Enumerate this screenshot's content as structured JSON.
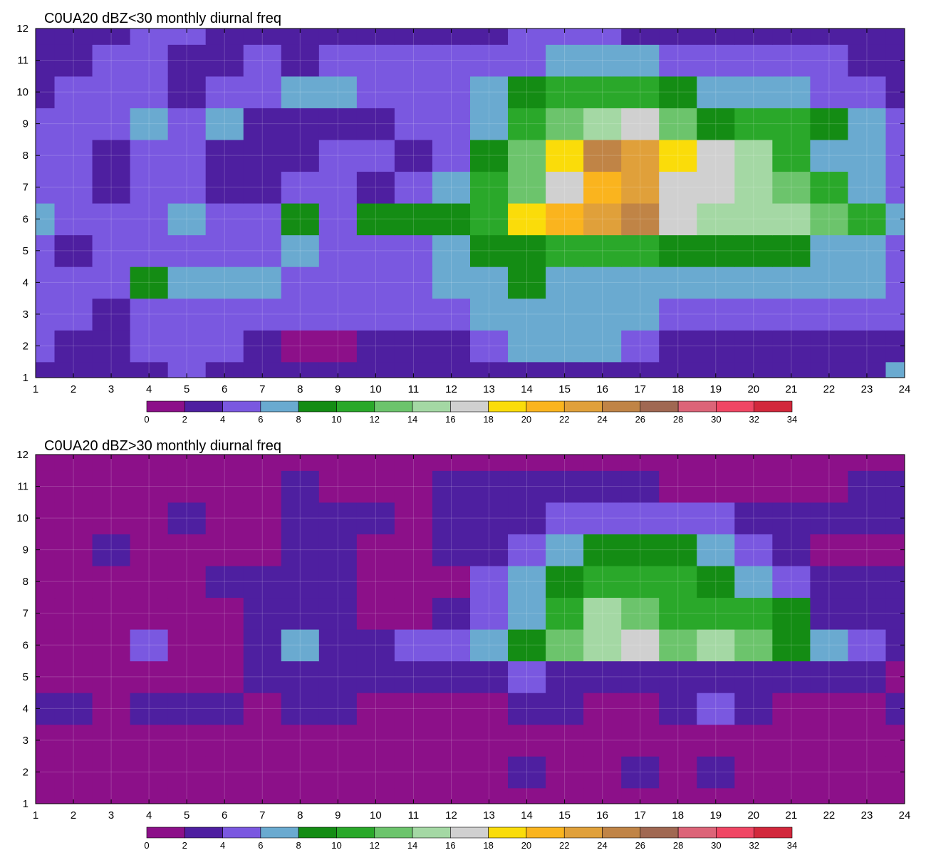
{
  "chart_data": [
    {
      "type": "heatmap",
      "title": "C0UA20 dBZ<30 monthly diurnal freq",
      "xlabel": "",
      "ylabel": "",
      "xlim": [
        1,
        24
      ],
      "ylim": [
        1,
        12
      ],
      "x_ticks": [
        1,
        2,
        3,
        4,
        5,
        6,
        7,
        8,
        9,
        10,
        11,
        12,
        13,
        14,
        15,
        16,
        17,
        18,
        19,
        20,
        21,
        22,
        23,
        24
      ],
      "y_ticks": [
        1,
        2,
        3,
        4,
        5,
        6,
        7,
        8,
        9,
        10,
        11,
        12
      ],
      "grid": true,
      "colorbar": {
        "levels": [
          0,
          2,
          4,
          6,
          8,
          10,
          12,
          14,
          16,
          18,
          20,
          22,
          24,
          26,
          28,
          30,
          32,
          34
        ],
        "colors": [
          "#8c1089",
          "#4e1fa0",
          "#7a58e0",
          "#6aaad0",
          "#148c14",
          "#2aa82a",
          "#6cc46c",
          "#a4d8a4",
          "#d0d0d0",
          "#fadc0a",
          "#fab41e",
          "#e0a03a",
          "#c08446",
          "#a06852",
          "#dc6478",
          "#f04664",
          "#d2283c"
        ]
      },
      "x": [
        1,
        2,
        3,
        4,
        5,
        6,
        7,
        8,
        9,
        10,
        11,
        12,
        13,
        14,
        15,
        16,
        17,
        18,
        19,
        20,
        21,
        22,
        23,
        24
      ],
      "y": [
        1,
        2,
        3,
        4,
        5,
        6,
        7,
        8,
        9,
        10,
        11,
        12
      ],
      "z": [
        [
          3,
          3,
          3,
          3,
          5,
          3,
          3,
          3,
          3,
          3,
          3,
          3,
          3,
          3,
          3,
          3,
          3,
          3,
          3,
          3,
          3,
          3,
          3,
          7
        ],
        [
          4,
          3,
          3,
          4,
          5,
          4,
          3,
          1,
          1,
          2,
          3,
          3,
          5,
          7,
          7,
          6,
          5,
          3,
          3,
          3,
          3,
          3,
          3,
          3
        ],
        [
          4,
          4,
          3,
          4,
          5,
          5,
          4,
          4,
          4,
          4,
          4,
          5,
          7,
          7,
          7,
          7,
          6,
          5,
          5,
          5,
          5,
          5,
          5,
          5
        ],
        [
          4,
          4,
          4,
          8,
          6,
          6,
          6,
          4,
          4,
          4,
          4,
          6,
          7,
          8,
          6,
          6,
          6,
          6,
          7,
          7,
          7,
          7,
          7,
          4
        ],
        [
          4,
          3,
          4,
          4,
          4,
          5,
          5,
          6,
          5,
          4,
          5,
          7,
          9,
          9,
          10,
          10,
          10,
          9,
          9,
          9,
          9,
          7,
          7,
          5
        ],
        [
          7,
          4,
          5,
          5,
          6,
          5,
          4,
          8,
          5,
          9,
          9,
          9,
          10,
          18,
          20,
          22,
          24,
          17,
          14,
          14,
          15,
          13,
          10,
          6
        ],
        [
          5,
          4,
          3,
          4,
          4,
          3,
          3,
          4,
          4,
          3,
          4,
          6,
          10,
          13,
          16,
          20,
          22,
          17,
          16,
          14,
          12,
          10,
          7,
          5
        ],
        [
          4,
          5,
          3,
          4,
          4,
          3,
          3,
          3,
          4,
          5,
          3,
          5,
          8,
          12,
          18,
          24,
          22,
          18,
          16,
          14,
          11,
          7,
          6,
          5
        ],
        [
          4,
          4,
          5,
          7,
          5,
          7,
          3,
          3,
          3,
          2,
          4,
          4,
          7,
          10,
          12,
          14,
          16,
          12,
          9,
          10,
          10,
          8,
          7,
          5
        ],
        [
          3,
          4,
          4,
          4,
          3,
          4,
          4,
          6,
          6,
          5,
          5,
          5,
          7,
          9,
          10,
          11,
          10,
          9,
          7,
          7,
          6,
          5,
          4,
          3
        ],
        [
          3,
          3,
          4,
          5,
          3,
          3,
          4,
          3,
          4,
          4,
          4,
          4,
          5,
          5,
          6,
          6,
          6,
          5,
          4,
          5,
          5,
          4,
          3,
          3
        ],
        [
          3,
          3,
          3,
          4,
          4,
          3,
          3,
          3,
          3,
          2,
          3,
          3,
          3,
          4,
          5,
          4,
          3,
          3,
          3,
          3,
          3,
          2,
          2,
          3
        ]
      ]
    },
    {
      "type": "heatmap",
      "title": "C0UA20 dBZ>30 monthly diurnal freq",
      "xlabel": "",
      "ylabel": "",
      "xlim": [
        1,
        24
      ],
      "ylim": [
        1,
        12
      ],
      "x_ticks": [
        1,
        2,
        3,
        4,
        5,
        6,
        7,
        8,
        9,
        10,
        11,
        12,
        13,
        14,
        15,
        16,
        17,
        18,
        19,
        20,
        21,
        22,
        23,
        24
      ],
      "y_ticks": [
        1,
        2,
        3,
        4,
        5,
        6,
        7,
        8,
        9,
        10,
        11,
        12
      ],
      "grid": true,
      "colorbar": {
        "levels": [
          0,
          2,
          4,
          6,
          8,
          10,
          12,
          14,
          16,
          18,
          20,
          22,
          24,
          26,
          28,
          30,
          32,
          34
        ],
        "colors": [
          "#8c1089",
          "#4e1fa0",
          "#7a58e0",
          "#6aaad0",
          "#148c14",
          "#2aa82a",
          "#6cc46c",
          "#a4d8a4",
          "#d0d0d0",
          "#fadc0a",
          "#fab41e",
          "#e0a03a",
          "#c08446",
          "#a06852",
          "#dc6478",
          "#f04664",
          "#d2283c"
        ]
      },
      "x": [
        1,
        2,
        3,
        4,
        5,
        6,
        7,
        8,
        9,
        10,
        11,
        12,
        13,
        14,
        15,
        16,
        17,
        18,
        19,
        20,
        21,
        22,
        23,
        24
      ],
      "y": [
        1,
        2,
        3,
        4,
        5,
        6,
        7,
        8,
        9,
        10,
        11,
        12
      ],
      "z": [
        [
          1,
          1,
          1,
          1,
          1,
          1,
          1,
          1,
          1,
          1,
          1,
          1,
          1,
          1,
          1,
          1,
          1,
          1,
          1,
          1,
          1,
          1,
          1,
          1
        ],
        [
          1,
          1,
          1,
          1,
          1,
          1,
          1,
          1,
          1,
          1,
          1,
          1,
          1,
          2,
          1,
          1,
          2,
          1,
          2,
          1,
          1,
          1,
          1,
          1
        ],
        [
          1,
          1,
          1,
          1,
          1,
          1,
          1,
          1,
          1,
          1,
          1,
          1,
          1,
          1,
          1,
          1,
          1,
          1,
          1,
          1,
          1,
          1,
          1,
          1
        ],
        [
          3,
          3,
          1,
          3,
          3,
          3,
          1,
          3,
          3,
          1,
          1,
          1,
          1,
          2,
          2,
          1,
          1,
          2,
          4,
          2,
          1,
          1,
          1,
          3
        ],
        [
          1,
          1,
          1,
          1,
          1,
          1,
          3,
          3,
          3,
          3,
          3,
          3,
          3,
          4,
          3,
          3,
          3,
          3,
          3,
          3,
          3,
          3,
          3,
          1
        ],
        [
          1,
          1,
          1,
          4,
          1,
          1,
          3,
          6,
          3,
          3,
          5,
          5,
          6,
          8,
          12,
          14,
          16,
          12,
          15,
          12,
          8,
          6,
          5,
          3
        ],
        [
          1,
          1,
          1,
          1,
          1,
          1,
          3,
          3,
          3,
          1,
          1,
          3,
          5,
          7,
          10,
          14,
          12,
          10,
          10,
          10,
          8,
          3,
          3,
          3
        ],
        [
          1,
          1,
          1,
          1,
          1,
          3,
          3,
          3,
          3,
          1,
          1,
          1,
          4,
          6,
          8,
          10,
          10,
          10,
          9,
          7,
          4,
          3,
          3,
          3
        ],
        [
          1,
          1,
          3,
          1,
          1,
          1,
          1,
          3,
          3,
          1,
          1,
          3,
          3,
          5,
          6,
          8,
          8,
          8,
          7,
          5,
          3,
          1,
          1,
          1
        ],
        [
          1,
          1,
          1,
          1,
          3,
          1,
          1,
          3,
          3,
          3,
          1,
          3,
          3,
          3,
          5,
          5,
          5,
          5,
          4,
          3,
          3,
          3,
          3,
          3
        ],
        [
          1,
          1,
          1,
          1,
          1,
          1,
          1,
          3,
          1,
          1,
          1,
          3,
          3,
          3,
          3,
          3,
          3,
          1,
          1,
          1,
          1,
          1,
          3,
          3
        ],
        [
          1,
          1,
          1,
          1,
          1,
          1,
          1,
          1,
          1,
          1,
          1,
          1,
          1,
          1,
          1,
          1,
          1,
          1,
          1,
          1,
          1,
          1,
          1,
          1
        ]
      ]
    }
  ]
}
